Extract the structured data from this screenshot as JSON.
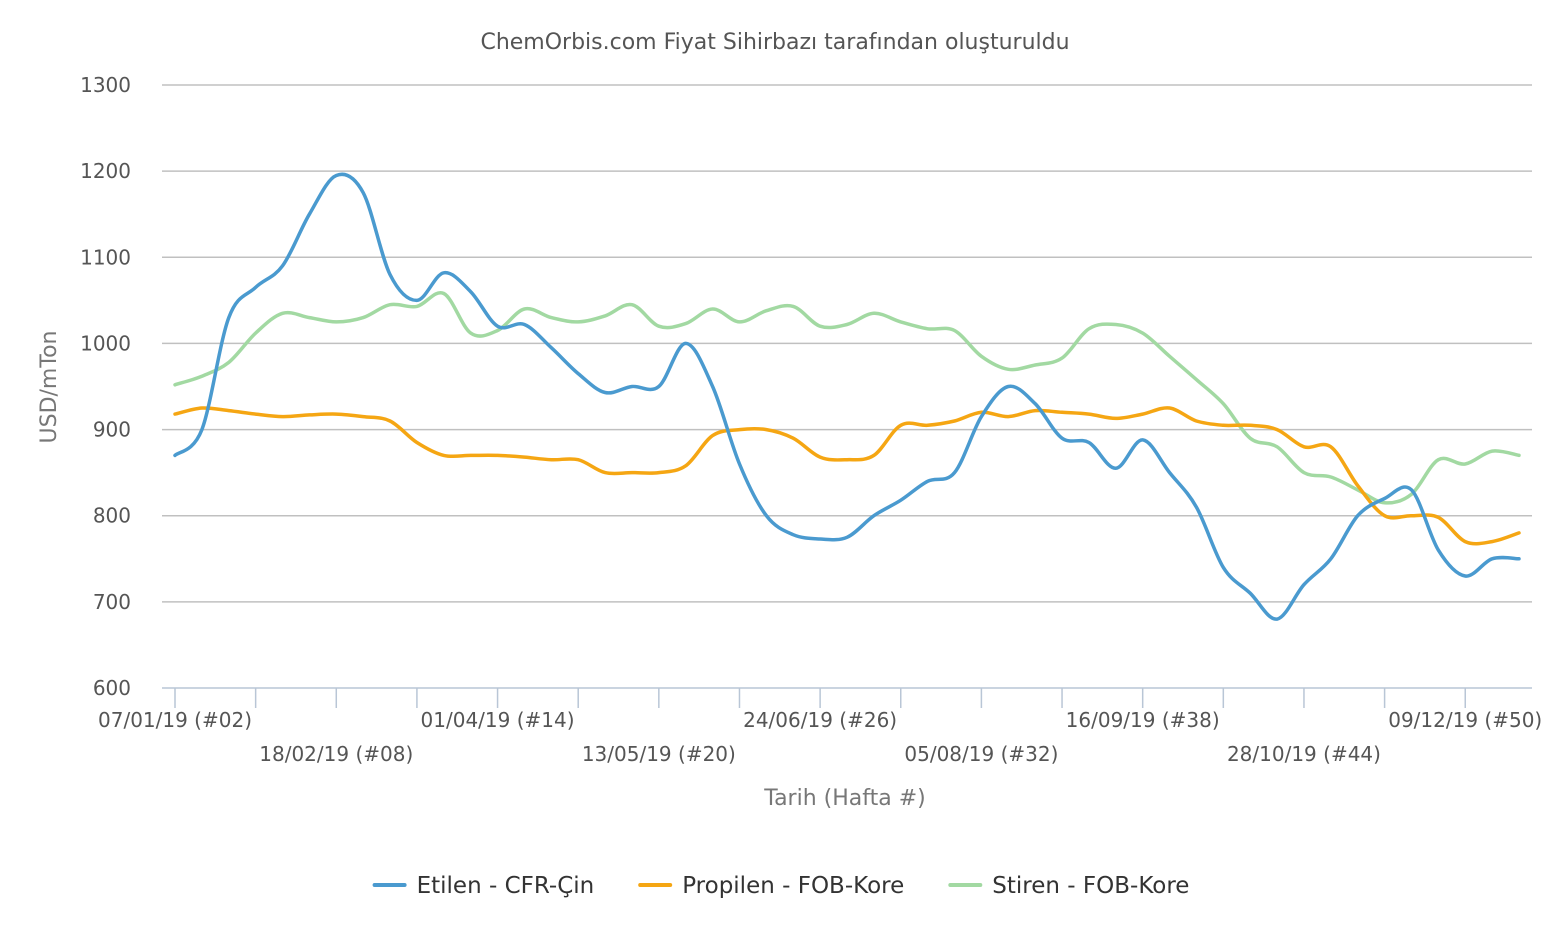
{
  "chart_data": {
    "type": "line",
    "title": "ChemOrbis.com Fiyat Sihirbazı tarafından oluşturuldu",
    "xlabel": "Tarih (Hafta #)",
    "ylabel": "USD/mTon",
    "ylim": [
      600,
      1300
    ],
    "yticks": [
      600,
      700,
      800,
      900,
      1000,
      1100,
      1200,
      1300
    ],
    "grid": true,
    "legend_position": "bottom",
    "weeks": [
      2,
      52
    ],
    "x_tick_labels": [
      {
        "week": 2,
        "label": "07/01/19 (#02)"
      },
      {
        "week": 8,
        "label": "18/02/19 (#08)"
      },
      {
        "week": 14,
        "label": "01/04/19 (#14)"
      },
      {
        "week": 20,
        "label": "13/05/19 (#20)"
      },
      {
        "week": 26,
        "label": "24/06/19 (#26)"
      },
      {
        "week": 32,
        "label": "05/08/19 (#32)"
      },
      {
        "week": 38,
        "label": "16/09/19 (#38)"
      },
      {
        "week": 44,
        "label": "28/10/19 (#44)"
      },
      {
        "week": 50,
        "label": "09/12/19 (#50)"
      }
    ],
    "series": [
      {
        "name": "Etilen - CFR-Çin",
        "color": "#4a9acf",
        "x": [
          2,
          3,
          4,
          5,
          6,
          7,
          8,
          9,
          10,
          11,
          12,
          13,
          14,
          15,
          16,
          17,
          18,
          19,
          20,
          21,
          22,
          23,
          24,
          25,
          26,
          27,
          28,
          29,
          30,
          31,
          32,
          33,
          34,
          35,
          36,
          37,
          38,
          39,
          40,
          41,
          42,
          43,
          44,
          45,
          46,
          47,
          48,
          49,
          50,
          51,
          52
        ],
        "values": [
          870,
          900,
          1030,
          1065,
          1090,
          1150,
          1195,
          1175,
          1080,
          1050,
          1082,
          1060,
          1020,
          1022,
          995,
          965,
          943,
          950,
          950,
          1000,
          950,
          860,
          800,
          778,
          773,
          775,
          800,
          818,
          840,
          850,
          915,
          950,
          930,
          890,
          885,
          855,
          888,
          850,
          810,
          740,
          710,
          680,
          720,
          750,
          800,
          820,
          830,
          760,
          730,
          750,
          750
        ]
      },
      {
        "name": "Propilen - FOB-Kore",
        "color": "#f5a613",
        "x": [
          2,
          3,
          4,
          5,
          6,
          7,
          8,
          9,
          10,
          11,
          12,
          13,
          14,
          15,
          16,
          17,
          18,
          19,
          20,
          21,
          22,
          23,
          24,
          25,
          26,
          27,
          28,
          29,
          30,
          31,
          32,
          33,
          34,
          35,
          36,
          37,
          38,
          39,
          40,
          41,
          42,
          43,
          44,
          45,
          46,
          47,
          48,
          49,
          50,
          51,
          52
        ],
        "values": [
          918,
          925,
          922,
          918,
          915,
          917,
          918,
          915,
          910,
          885,
          870,
          870,
          870,
          868,
          865,
          865,
          850,
          850,
          850,
          858,
          893,
          900,
          900,
          890,
          868,
          865,
          870,
          905,
          905,
          910,
          920,
          915,
          922,
          920,
          918,
          913,
          918,
          925,
          910,
          905,
          905,
          900,
          880,
          880,
          835,
          800,
          800,
          798,
          770,
          770,
          780
        ]
      },
      {
        "name": "Stiren - FOB-Kore",
        "color": "#a2d9a2",
        "x": [
          2,
          3,
          4,
          5,
          6,
          7,
          8,
          9,
          10,
          11,
          12,
          13,
          14,
          15,
          16,
          17,
          18,
          19,
          20,
          21,
          22,
          23,
          24,
          25,
          26,
          27,
          28,
          29,
          30,
          31,
          32,
          33,
          34,
          35,
          36,
          37,
          38,
          39,
          40,
          41,
          42,
          43,
          44,
          45,
          46,
          47,
          48,
          49,
          50,
          51,
          52
        ],
        "values": [
          952,
          962,
          978,
          1012,
          1035,
          1030,
          1025,
          1030,
          1045,
          1043,
          1058,
          1012,
          1015,
          1040,
          1030,
          1025,
          1032,
          1045,
          1020,
          1023,
          1040,
          1025,
          1038,
          1043,
          1020,
          1022,
          1035,
          1025,
          1017,
          1015,
          985,
          970,
          975,
          983,
          1017,
          1022,
          1012,
          985,
          958,
          930,
          890,
          880,
          850,
          845,
          830,
          815,
          825,
          865,
          860,
          875,
          870
        ]
      }
    ]
  }
}
